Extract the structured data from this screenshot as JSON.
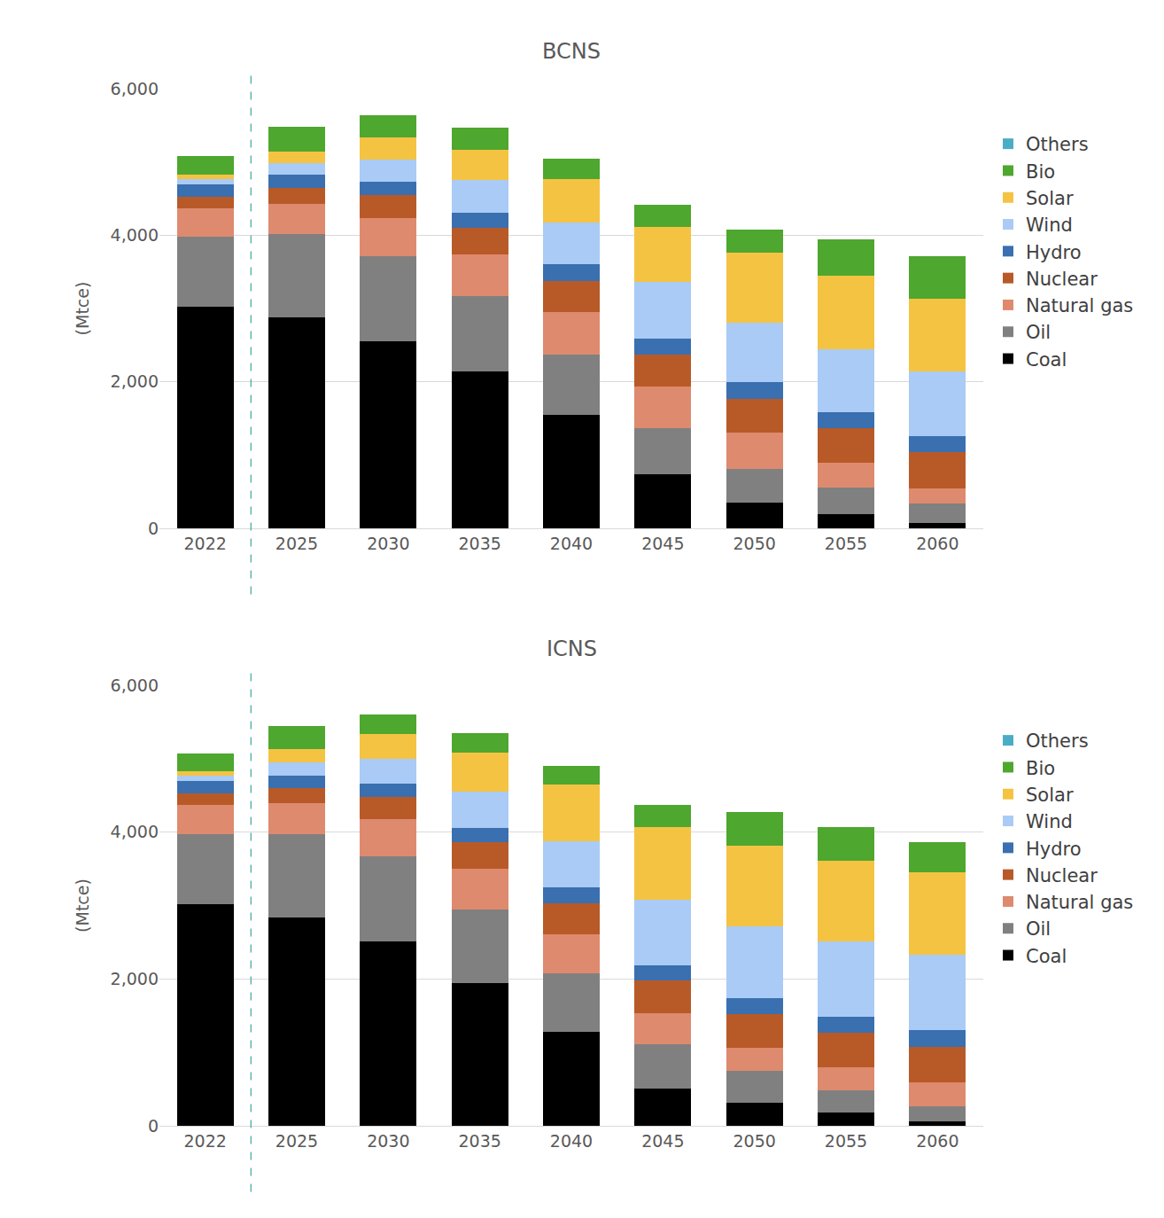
{
  "chart_data": [
    {
      "type": "bar",
      "title": "BCNS",
      "ylabel": "(Mtce)",
      "stacked": true,
      "grid": true,
      "legend": "right",
      "categories": [
        "2022",
        "2025",
        "2030",
        "2035",
        "2040",
        "2045",
        "2050",
        "2055",
        "2060"
      ],
      "ylim": [
        0,
        6000
      ],
      "yticks": [
        0,
        {
          "value": 2000,
          "label": "2,000"
        },
        {
          "value": 4000,
          "label": "4,000"
        },
        {
          "value": 6000,
          "label": "6,000"
        }
      ],
      "series": [
        {
          "name": "Coal",
          "color": "#000000",
          "values": [
            3020,
            2885,
            2557,
            2145,
            1551,
            739,
            351,
            194,
            73
          ]
        },
        {
          "name": "Oil",
          "color": "#808080",
          "values": [
            955,
            1130,
            1160,
            1020,
            825,
            630,
            460,
            365,
            265
          ]
        },
        {
          "name": "Natural gas",
          "color": "#DE8A6E",
          "values": [
            390,
            410,
            520,
            570,
            580,
            570,
            500,
            340,
            205
          ]
        },
        {
          "name": "Nuclear",
          "color": "#B85A28",
          "values": [
            160,
            220,
            315,
            365,
            425,
            435,
            460,
            470,
            500
          ]
        },
        {
          "name": "Hydro",
          "color": "#3A6FB0",
          "values": [
            170,
            180,
            180,
            205,
            220,
            220,
            220,
            220,
            220
          ]
        },
        {
          "name": "Wind",
          "color": "#A9CBF5",
          "values": [
            70,
            160,
            300,
            450,
            570,
            775,
            810,
            850,
            875
          ]
        },
        {
          "name": "Solar",
          "color": "#F5C342",
          "values": [
            60,
            160,
            300,
            410,
            595,
            750,
            960,
            1005,
            995
          ]
        },
        {
          "name": "Bio",
          "color": "#4EA72E",
          "values": [
            250,
            330,
            300,
            300,
            280,
            300,
            315,
            500,
            580
          ]
        },
        {
          "name": "Others",
          "color": "#4BACC6",
          "values": [
            0,
            0,
            0,
            0,
            0,
            0,
            0,
            0,
            0
          ]
        }
      ]
    },
    {
      "type": "bar",
      "title": "ICNS",
      "ylabel": "(Mtce)",
      "stacked": true,
      "grid": true,
      "legend": "right",
      "categories": [
        "2022",
        "2025",
        "2030",
        "2035",
        "2040",
        "2045",
        "2050",
        "2055",
        "2060"
      ],
      "ylim": [
        0,
        6000
      ],
      "yticks": [
        0,
        {
          "value": 2000,
          "label": "2,000"
        },
        {
          "value": 4000,
          "label": "4,000"
        },
        {
          "value": 6000,
          "label": "6,000"
        }
      ],
      "series": [
        {
          "name": "Coal",
          "color": "#000000",
          "values": [
            3020,
            2836,
            2510,
            1943,
            1279,
            507,
            314,
            181,
            60
          ]
        },
        {
          "name": "Oil",
          "color": "#808080",
          "values": [
            955,
            1135,
            1160,
            1000,
            800,
            605,
            435,
            300,
            205
          ]
        },
        {
          "name": "Natural gas",
          "color": "#DE8A6E",
          "values": [
            390,
            420,
            505,
            555,
            530,
            425,
            315,
            315,
            325
          ]
        },
        {
          "name": "Nuclear",
          "color": "#B85A28",
          "values": [
            160,
            205,
            300,
            360,
            420,
            445,
            460,
            470,
            485
          ]
        },
        {
          "name": "Hydro",
          "color": "#3A6FB0",
          "values": [
            170,
            170,
            180,
            195,
            215,
            205,
            215,
            220,
            230
          ]
        },
        {
          "name": "Wind",
          "color": "#A9CBF5",
          "values": [
            70,
            180,
            340,
            495,
            630,
            895,
            980,
            1025,
            1025
          ]
        },
        {
          "name": "Solar",
          "color": "#F5C342",
          "values": [
            60,
            180,
            340,
            530,
            770,
            990,
            1100,
            1100,
            1120
          ]
        },
        {
          "name": "Bio",
          "color": "#4EA72E",
          "values": [
            250,
            315,
            265,
            265,
            255,
            300,
            460,
            460,
            410
          ]
        },
        {
          "name": "Others",
          "color": "#4BACC6",
          "values": [
            0,
            0,
            0,
            0,
            0,
            0,
            0,
            0,
            0
          ]
        }
      ]
    }
  ]
}
